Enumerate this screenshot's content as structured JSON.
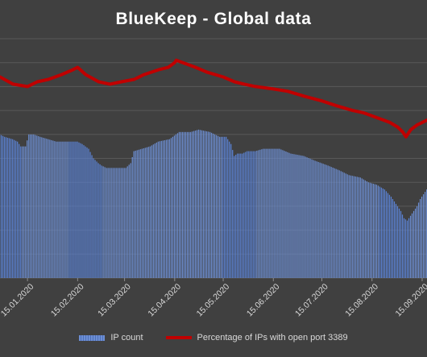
{
  "title": "BlueKeep - Global data",
  "legend": {
    "bar_label": "IP count",
    "line_label": "Percentage of IPs with open port 3389"
  },
  "colors": {
    "background": "#404040",
    "gridline": "#595959",
    "bars": "#6d8fd4",
    "bars_highlight": "#5b83d6",
    "line": "#c00000",
    "text": "#d9d9d9"
  },
  "chart_data": {
    "type": "bar",
    "title": "BlueKeep - Global data",
    "xlabel": "",
    "ylabel": "",
    "grid": true,
    "legend_position": "bottom",
    "x_tick_labels": [
      "15.01.2020",
      "15.02.2020",
      "15.03.2020",
      "15.04.2020",
      "15.05.2020",
      "15.06.2020",
      "15.07.2020",
      "15.08.2020",
      "15.09.2020"
    ],
    "x_tick_days": [
      14,
      45,
      74,
      105,
      135,
      166,
      196,
      227,
      258
    ],
    "x_range_days": [
      -3,
      261
    ],
    "ylim": [
      0,
      100
    ],
    "series": [
      {
        "name": "IP count",
        "kind": "bar",
        "points": [
          [
            -3,
            60
          ],
          [
            0,
            59
          ],
          [
            5,
            58
          ],
          [
            8,
            57
          ],
          [
            10,
            55
          ],
          [
            13,
            55
          ],
          [
            15,
            60
          ],
          [
            18,
            60
          ],
          [
            22,
            59
          ],
          [
            27,
            58
          ],
          [
            32,
            57
          ],
          [
            40,
            57
          ],
          [
            45,
            57
          ],
          [
            48,
            56
          ],
          [
            52,
            54
          ],
          [
            55,
            50
          ],
          [
            58,
            48
          ],
          [
            60,
            47
          ],
          [
            63,
            46
          ],
          [
            65,
            46
          ],
          [
            70,
            46
          ],
          [
            75,
            46
          ],
          [
            78,
            48
          ],
          [
            80,
            53
          ],
          [
            85,
            54
          ],
          [
            90,
            55
          ],
          [
            95,
            57
          ],
          [
            102,
            58
          ],
          [
            108,
            61
          ],
          [
            115,
            61
          ],
          [
            120,
            62
          ],
          [
            127,
            61
          ],
          [
            133,
            59
          ],
          [
            137,
            59
          ],
          [
            140,
            56
          ],
          [
            142,
            51
          ],
          [
            144,
            52
          ],
          [
            147,
            52
          ],
          [
            150,
            53
          ],
          [
            155,
            53
          ],
          [
            160,
            54
          ],
          [
            165,
            54
          ],
          [
            170,
            54
          ],
          [
            177,
            52
          ],
          [
            185,
            51
          ],
          [
            192,
            49
          ],
          [
            200,
            47
          ],
          [
            207,
            45
          ],
          [
            213,
            43
          ],
          [
            220,
            42
          ],
          [
            225,
            40
          ],
          [
            230,
            39
          ],
          [
            235,
            37
          ],
          [
            239,
            34
          ],
          [
            242,
            31
          ],
          [
            245,
            28
          ],
          [
            247,
            25
          ],
          [
            249,
            24
          ],
          [
            252,
            27
          ],
          [
            255,
            30
          ],
          [
            257,
            33
          ],
          [
            259,
            35
          ],
          [
            261,
            37
          ]
        ],
        "highlight_ranges_days": [
          [
            -3,
            10
          ],
          [
            40,
            60
          ],
          [
            135,
            155
          ],
          [
            232,
            250
          ]
        ]
      },
      {
        "name": "Percentage of IPs with open port 3389",
        "kind": "line",
        "points": [
          [
            -3,
            84
          ],
          [
            5,
            81
          ],
          [
            14,
            80
          ],
          [
            20,
            82
          ],
          [
            27,
            83
          ],
          [
            35,
            85
          ],
          [
            42,
            87
          ],
          [
            45,
            88
          ],
          [
            50,
            85
          ],
          [
            58,
            82
          ],
          [
            65,
            81
          ],
          [
            72,
            82
          ],
          [
            80,
            83
          ],
          [
            86,
            85
          ],
          [
            95,
            87
          ],
          [
            101,
            88
          ],
          [
            105,
            90
          ],
          [
            106,
            91
          ],
          [
            110,
            90
          ],
          [
            118,
            88
          ],
          [
            125,
            86
          ],
          [
            135,
            84
          ],
          [
            142,
            82
          ],
          [
            148,
            81
          ],
          [
            155,
            80
          ],
          [
            166,
            79
          ],
          [
            175,
            78
          ],
          [
            185,
            76
          ],
          [
            196,
            74
          ],
          [
            205,
            72
          ],
          [
            215,
            70
          ],
          [
            222,
            69
          ],
          [
            230,
            67
          ],
          [
            238,
            65
          ],
          [
            243,
            63
          ],
          [
            246,
            61
          ],
          [
            248,
            59
          ],
          [
            251,
            62
          ],
          [
            255,
            64
          ],
          [
            261,
            66
          ]
        ]
      }
    ]
  }
}
